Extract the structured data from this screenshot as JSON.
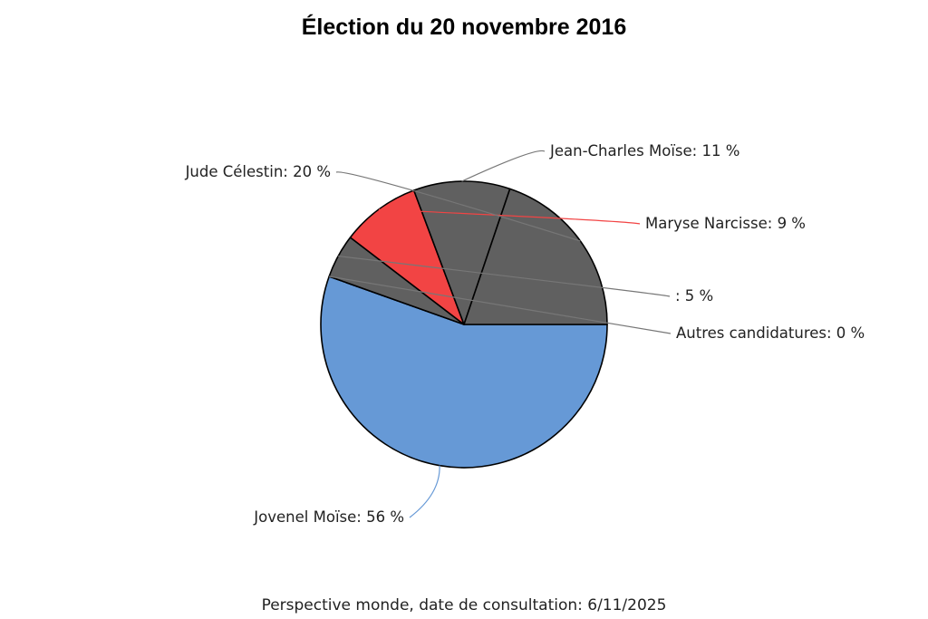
{
  "chart_data": {
    "type": "pie",
    "title": "Élection du 20 novembre 2016",
    "source": "Perspective monde, date de consultation: 6/11/2025",
    "slices": [
      {
        "label": "Jovenel Moïse",
        "value": 56,
        "color": "#6699d6"
      },
      {
        "label": "Autres candidatures",
        "value": 0,
        "color": "#606060"
      },
      {
        "label": "",
        "value": 5,
        "color": "#606060"
      },
      {
        "label": "Maryse Narcisse",
        "value": 9,
        "color": "#f24444"
      },
      {
        "label": "Jean-Charles Moïse",
        "value": 11,
        "color": "#606060"
      },
      {
        "label": "Jude Célestin",
        "value": 20,
        "color": "#606060"
      }
    ],
    "value_suffix": " %",
    "connector_colors": {
      "default": "#777777",
      "Maryse Narcisse": "#f24444",
      "Jovenel Moïse": "#6699d6"
    }
  }
}
